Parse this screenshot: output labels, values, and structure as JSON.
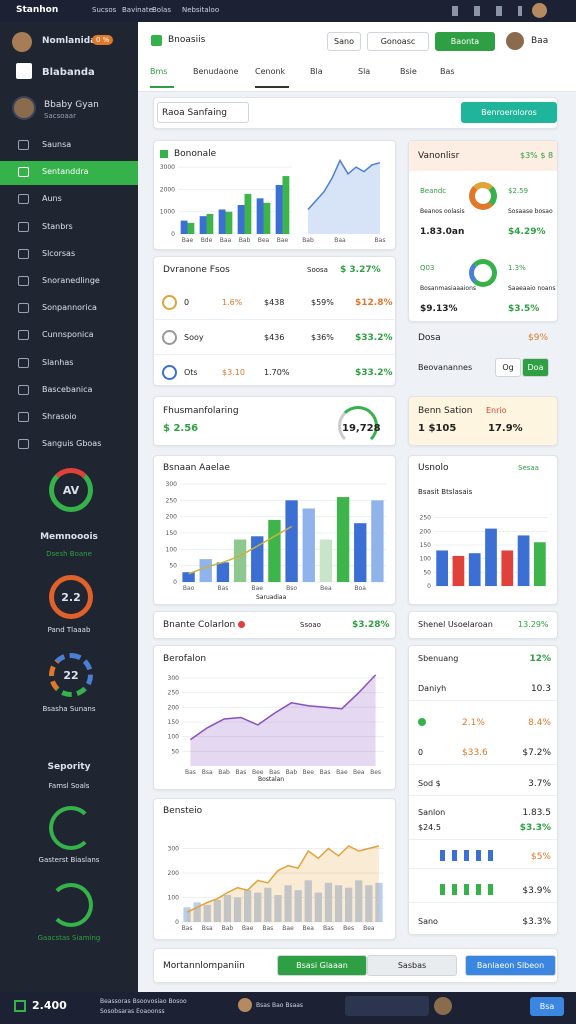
{
  "topbar": {
    "app": "Stanhon",
    "links": [
      "Sucsos",
      "Bavinate",
      "Bolas",
      "Nebsitaloo"
    ]
  },
  "sidebar": {
    "user": "Nomlanida",
    "badge": "0 %",
    "brand": "Blabanda",
    "profile": {
      "name": "Bbaby Gyan",
      "role": "Sacsoaar"
    },
    "nav": [
      "Saunsa",
      "Sentanddra",
      "Auns",
      "Stanbrs",
      "Slcorsas",
      "Snoranedlinge",
      "Sonpannorica",
      "Cunnsponica",
      "Slanhas",
      "Bascebanica",
      "Shrasoio",
      "Sanguis Gboas"
    ],
    "widgets": {
      "w1": {
        "value": "AV",
        "title": "Memnooois",
        "sub": "Dsesh Boane"
      },
      "w2": {
        "value": "2.2",
        "sub": "Pand Tlaaab"
      },
      "w3": {
        "value": "22",
        "sub": "Bsasha Sunans"
      },
      "w4": {
        "title": "Sepority",
        "sub": "Famsl Soals"
      },
      "w5": {
        "sub": "Gasterst Biaslans"
      },
      "w6": {
        "sub": "Gaacstas Siaming"
      }
    }
  },
  "header": {
    "logo": "Bnoasiis",
    "buttons": [
      "Sano",
      "Gonoasc",
      "Baonta"
    ],
    "user": "Baa",
    "tabs": [
      "Bms",
      "Benudaone",
      "Cenonk",
      "Bla",
      "Sla",
      "Bsie",
      "Bas"
    ]
  },
  "toolbar": {
    "search": "Raoa Sanfaing",
    "button": "Benroeroloros"
  },
  "sales": {
    "title": "Bononale",
    "bars": {
      "ylim": [
        0,
        3500
      ],
      "yticks": [
        0,
        1000,
        2000,
        3000
      ],
      "categories": [
        "Bae",
        "Bde",
        "Baa",
        "Bab",
        "Bea",
        "Bae"
      ],
      "series": [
        {
          "type": "bar",
          "color": "#3b6fd4",
          "values": [
            600,
            800,
            1100,
            1300,
            1600,
            2200
          ]
        },
        {
          "type": "bar",
          "color": "#3db54a",
          "values": [
            500,
            900,
            1000,
            1800,
            1400,
            2600
          ]
        }
      ]
    },
    "area": {
      "ylim": [
        0,
        3500
      ],
      "categories": [
        "Bab",
        null,
        null,
        null,
        "Baa",
        null,
        null,
        null,
        null,
        "Bas"
      ],
      "series": [
        {
          "type": "area",
          "color": "#4a7fd6",
          "values": [
            1100,
            1500,
            1900,
            2500,
            3300,
            2700,
            3000,
            2800,
            3100,
            3200
          ]
        }
      ]
    }
  },
  "vanon": {
    "title": "Vanonlisr",
    "value": "$3% $ 8",
    "kpis": [
      {
        "title": "Beandc",
        "sub": "Beanos oolasis",
        "value": "1.83.0an"
      },
      {
        "title": "$2.59",
        "sub": "Sosaase bosao",
        "value": "$4.29%"
      },
      {
        "title": "Q03",
        "sub": "Bosanmasiaaaions",
        "value": "$9.13%"
      },
      {
        "title": "1.3%",
        "sub": "Saaeaaio noans",
        "value": "$3.5%"
      }
    ],
    "footer": {
      "label": "Dosa",
      "value": "$9%"
    }
  },
  "dennosh": {
    "label": "Beovanannes",
    "buttons": [
      "Og",
      "Doa"
    ]
  },
  "orders": {
    "title": "Dvranone Fsos",
    "filter": "Soosa",
    "total": "$ 3.27%",
    "rows": [
      {
        "name": "0",
        "a": "1.6%",
        "b": "$438",
        "c": "$59%",
        "d": "$12.8%"
      },
      {
        "name": "Sooy",
        "b": "$436",
        "c": "$36%",
        "d": "$33.2%"
      },
      {
        "name": "Ots",
        "a": "$3.10",
        "b": "1.70%",
        "d": "$33.2%"
      }
    ]
  },
  "kpi": {
    "title": "Fhusmanfolaring",
    "value": "$ 2.56",
    "gauge": "19,728"
  },
  "kpi2": {
    "title": "Benn Sation",
    "tag": "Enrio",
    "value": "1 $105",
    "pct": "17.9%"
  },
  "mix": {
    "title": "Bsnaan Aaelae",
    "xlabel": "Saruadiaa",
    "chart": {
      "ylim": [
        0,
        300
      ],
      "yticks": [
        0,
        50,
        100,
        150,
        200,
        250,
        300
      ],
      "categories": [
        "Bao",
        null,
        "Bas",
        null,
        "Bae",
        null,
        "Bso",
        null,
        "Bea",
        null,
        "Boa",
        null
      ],
      "series": [
        {
          "type": "bar",
          "colors": [
            "#3b6fd4",
            "#8fb3ea",
            "#3b6fd4",
            "#8fc88f",
            "#3b6fd4",
            "#3db54a",
            "#3b6fd4",
            "#8fb3ea",
            "#c9e5c9",
            "#3db54a",
            "#3b6fd4",
            "#8fb3ea"
          ],
          "values": [
            30,
            70,
            60,
            130,
            140,
            190,
            250,
            225,
            130,
            260,
            180,
            250
          ]
        },
        {
          "type": "line",
          "color": "#c9b43a",
          "values": [
            25,
            45,
            60,
            80,
            110,
            140,
            170,
            null,
            null,
            null,
            null,
            null
          ]
        }
      ]
    }
  },
  "usnolo": {
    "title": "Usnolo",
    "tag": "Sesaa",
    "sub": "Bsasit Btslasais",
    "chart": {
      "ylim": [
        0,
        300
      ],
      "yticks": [
        0,
        50,
        100,
        150,
        200,
        250
      ],
      "categories": [
        null,
        null,
        null,
        null,
        null,
        null,
        null
      ],
      "series": [
        {
          "type": "bar",
          "colors": [
            "#3b6fd4",
            "#e0413a",
            "#3b6fd4",
            "#3b6fd4",
            "#e0413a",
            "#3b6fd4",
            "#3db54a"
          ],
          "values": [
            130,
            110,
            120,
            210,
            130,
            185,
            160
          ]
        }
      ]
    }
  },
  "strip": {
    "title": "Bnante Colarlon",
    "filter": "Ssoao",
    "value": "$3.28%"
  },
  "strip2": {
    "title": "Shenel Usoelaroan",
    "value": "13.29%"
  },
  "line": {
    "title": "Berofalon",
    "xlabel": "Bostalan",
    "chart": {
      "ylim": [
        0,
        320
      ],
      "yticks": [
        50,
        100,
        150,
        200,
        250,
        300
      ],
      "categories": [
        "Bas",
        "Bsa",
        "Bab",
        "Bas",
        "Bee",
        "Bas",
        "Bab",
        "Bee",
        "Bas",
        "Bae",
        "Bea",
        "Bes"
      ],
      "series": [
        {
          "type": "area",
          "color": "#8a4fc0",
          "values": [
            90,
            130,
            160,
            165,
            140,
            180,
            215,
            205,
            200,
            195,
            250,
            310
          ]
        }
      ]
    }
  },
  "list": {
    "rows": [
      {
        "left": "Sbenuang",
        "right": "12%"
      },
      {
        "left": "Daniyh",
        "right": "10.3"
      },
      {
        "mid": "2.1%",
        "right": "8.4%"
      },
      {
        "left": "0",
        "mid": "$33.6",
        "right": "$7.2%"
      },
      {
        "left": "Sod $",
        "right": "3.7%"
      },
      {
        "left": "Sanlon",
        "right": "1.83.5"
      },
      {
        "left": "$24.5",
        "right": "$3.3%"
      },
      {
        "right": "$5%"
      },
      {
        "right": "$3.9%"
      },
      {
        "left": "Sano",
        "right": "$3.3%"
      }
    ]
  },
  "growth": {
    "title": "Bensteio",
    "chart": {
      "ylim": [
        0,
        400
      ],
      "yticks": [
        0,
        100,
        200,
        300
      ],
      "categories": [
        "Bas",
        null,
        "Bsa",
        null,
        "Bab",
        null,
        "Bae",
        null,
        "Bas",
        null,
        "Bae",
        null,
        "Bea",
        null,
        "Bas",
        null,
        "Bes",
        null,
        "Bea",
        null
      ],
      "series": [
        {
          "type": "bar",
          "color": "#b9cdee",
          "values": [
            60,
            80,
            70,
            90,
            110,
            100,
            130,
            120,
            140,
            110,
            150,
            130,
            170,
            120,
            160,
            150,
            140,
            170,
            150,
            160
          ]
        },
        {
          "type": "area",
          "color": "#e2a23a",
          "values": [
            40,
            60,
            80,
            95,
            120,
            140,
            130,
            170,
            160,
            210,
            230,
            220,
            290,
            260,
            300,
            270,
            310,
            290,
            300,
            310
          ]
        }
      ]
    }
  },
  "footer": {
    "title": "Mortannlompaniin",
    "segments": [
      "Bsasi Glaaan",
      "Sasbas"
    ],
    "button": "Banlaeon Slbeon"
  },
  "bottombar": {
    "value": "2.400",
    "items": [
      "Beassoras Bsoovosiao Bosoo",
      "Sosobsaras Eoaoonss",
      "Bsas Bao Bsaas"
    ],
    "button": "Bsa"
  }
}
